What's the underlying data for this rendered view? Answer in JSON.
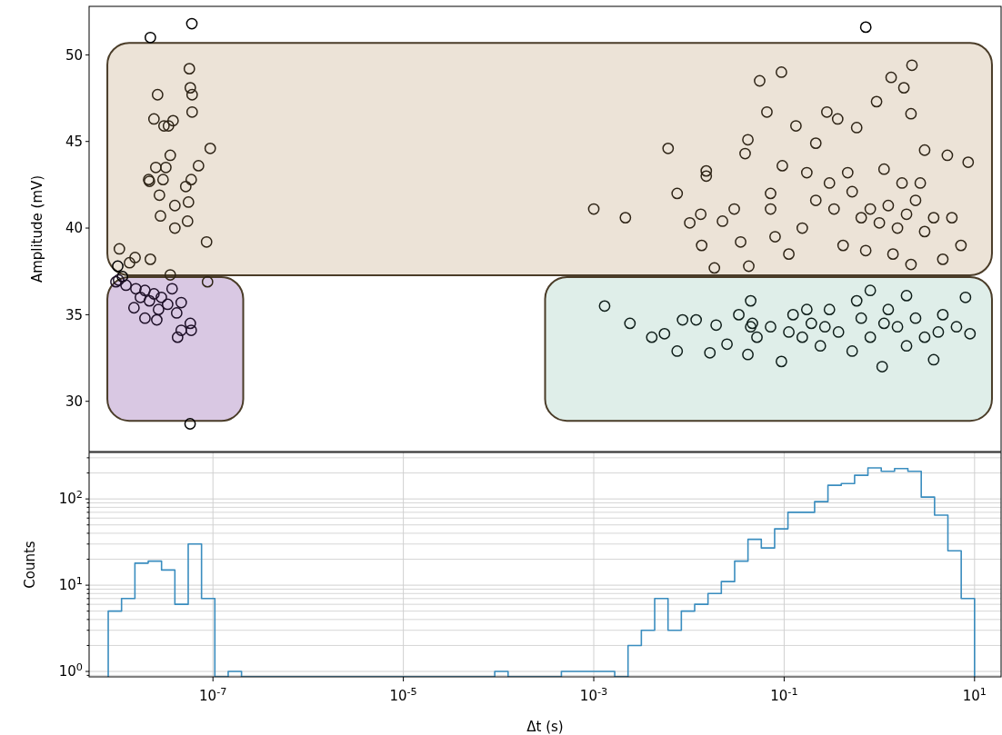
{
  "chart_data": [
    {
      "type": "scatter",
      "ylabel": "Amplitude (mV)",
      "log": "x",
      "xlim": [
        5e-09,
        19
      ],
      "ylim": [
        27.1,
        52.8
      ],
      "yticks": [
        30,
        35,
        40,
        45,
        50
      ],
      "tick_labels": "y",
      "marker": "circle",
      "grid": false,
      "series": [
        {
          "color": "#000000",
          "x": [
            2.2e-08,
            6e-08,
            5.75e-08,
            0.72,
            1e-08,
            1.12e-08
          ],
          "values": [
            51.0,
            51.8,
            28.7,
            51.6,
            37.8,
            37.2
          ]
        },
        {
          "color": "#2e2416",
          "x": [
            5.65e-08,
            5.78e-08,
            6.04e-08,
            2.62e-08,
            6.04e-08,
            2.4e-08,
            3.06e-08,
            3.81e-08,
            3.41e-08,
            9.36e-08,
            3.56e-08,
            2.51e-08,
            3.2e-08,
            7.05e-08,
            2.11e-08,
            2.15e-08,
            2.99e-08,
            5.18e-08,
            5.91e-08,
            2.74e-08,
            3.98e-08,
            5.53e-08,
            2.81e-08,
            5.41e-08,
            3.98e-08,
            8.57e-08,
            1.04e-08,
            1.52e-08,
            2.2e-08,
            1.33e-08,
            3.56e-08,
            8.77e-08,
            0.001,
            0.00215,
            0.00604,
            0.00752,
            0.0102,
            0.0133,
            0.0152,
            0.0152,
            0.0185,
            0.0136,
            0.0225,
            0.0299,
            0.0349,
            0.0389,
            0.0416,
            0.0425,
            0.0553,
            0.0659,
            0.0936,
            0.0957,
            0.072,
            0.072,
            0.0803,
            0.133,
            0.215,
            0.281,
            0.365,
            0.578,
            0.935,
            1.33,
            1.81,
            2.2,
            2.15,
            2.99,
            5.18,
            8.57,
            5.78,
            7.2,
            4.64,
            0.215,
            0.334,
            0.518,
            0.645,
            0.803,
            1.0,
            1.24,
            1.55,
            1.93,
            2.4,
            2.99,
            3.72,
            0.416,
            0.719,
            1.39,
            2.15,
            0.155,
            0.112,
            0.465,
            1.12,
            1.73,
            0.299,
            2.69,
            0.173
          ],
          "values": [
            49.2,
            48.1,
            47.7,
            47.7,
            46.7,
            46.3,
            45.9,
            46.2,
            45.9,
            44.6,
            44.2,
            43.5,
            43.5,
            43.6,
            42.8,
            42.7,
            42.8,
            42.4,
            42.8,
            41.9,
            41.3,
            41.5,
            40.7,
            40.4,
            40.0,
            39.2,
            38.8,
            38.3,
            38.2,
            38.0,
            37.3,
            36.9,
            41.1,
            40.6,
            44.6,
            42.0,
            40.3,
            40.8,
            43.3,
            43.0,
            37.7,
            39.0,
            40.4,
            41.1,
            39.2,
            44.3,
            45.1,
            37.8,
            48.5,
            46.7,
            49.0,
            43.6,
            42.0,
            41.1,
            39.5,
            45.9,
            44.9,
            46.7,
            46.3,
            45.8,
            47.3,
            48.7,
            48.1,
            49.4,
            46.6,
            44.5,
            44.2,
            43.8,
            40.6,
            39.0,
            38.2,
            41.6,
            41.1,
            42.1,
            40.6,
            41.1,
            40.3,
            41.3,
            40.0,
            40.8,
            41.6,
            39.8,
            40.6,
            39.0,
            38.7,
            38.5,
            37.9,
            40.0,
            38.5,
            43.2,
            43.4,
            42.6,
            42.6,
            42.6,
            43.2
          ]
        },
        {
          "color": "#1e1028",
          "x": [
            1.02e-08,
            1.22e-08,
            1.55e-08,
            1.93e-08,
            2.4e-08,
            1.73e-08,
            2.15e-08,
            2.87e-08,
            1.48e-08,
            2.68e-08,
            1.93e-08,
            3.34e-08,
            4.16e-08,
            4.64e-08,
            2.57e-08,
            5.78e-08,
            4.64e-08,
            5.91e-08,
            4.25e-08,
            9.57e-09,
            3.72e-08
          ],
          "values": [
            37.0,
            36.7,
            36.5,
            36.4,
            36.2,
            36.0,
            35.8,
            36.0,
            35.4,
            35.3,
            34.8,
            35.6,
            35.1,
            35.7,
            34.7,
            34.5,
            34.1,
            34.1,
            33.7,
            36.9,
            36.5
          ]
        },
        {
          "color": "#0f1e1a",
          "x": [
            0.0013,
            0.0024,
            0.00407,
            0.00553,
            0.00752,
            0.00857,
            0.0119,
            0.0166,
            0.0193,
            0.0251,
            0.0334,
            0.0445,
            0.0445,
            0.0416,
            0.0518,
            0.072,
            0.0936,
            0.124,
            0.155,
            0.193,
            0.24,
            0.299,
            0.372,
            0.518,
            0.645,
            0.803,
            1.07,
            1.24,
            1.55,
            1.93,
            2.4,
            2.99,
            3.72,
            4.64,
            6.46,
            8.03,
            8.96,
            0.803,
            0.578,
            1.93,
            0.112,
            0.0464,
            0.268,
            1.12,
            4.16,
            0.173
          ],
          "values": [
            35.5,
            34.5,
            33.7,
            33.9,
            32.9,
            34.7,
            34.7,
            32.8,
            34.4,
            33.3,
            35.0,
            35.8,
            34.3,
            32.7,
            33.7,
            34.3,
            32.3,
            35.0,
            33.7,
            34.5,
            33.2,
            35.3,
            34.0,
            32.9,
            34.8,
            33.7,
            32.0,
            35.3,
            34.3,
            33.2,
            34.8,
            33.7,
            32.4,
            35.0,
            34.3,
            36.0,
            33.9,
            36.4,
            35.8,
            36.1,
            34.0,
            34.5,
            34.3,
            34.5,
            34.0,
            35.3
          ]
        }
      ]
    },
    {
      "type": "histogram",
      "xlabel": "Δt (s)",
      "ylabel": "Counts",
      "log": "xy",
      "grid": true,
      "color": "#3a8dbf",
      "xlim": [
        5e-09,
        19
      ],
      "xticks": [
        {
          "value": 1e-07,
          "label": "10$^{-7}$"
        },
        {
          "value": 1e-05,
          "label": "10$^{-5}$"
        },
        {
          "value": 0.001,
          "label": "10$^{-3}$"
        },
        {
          "value": 0.1,
          "label": "10$^{-1}$"
        },
        {
          "value": 10,
          "label": "10$^{1}$"
        }
      ],
      "ylim": [
        0.865,
        346
      ],
      "yticks": [
        {
          "value": 1,
          "label": "10$^{0}$"
        },
        {
          "value": 10,
          "label": "10$^{1}$"
        },
        {
          "value": 100,
          "label": "10$^{2}$"
        }
      ],
      "bins": [
        7.94e-09,
        1.096e-08,
        1.514e-08,
        2.089e-08,
        2.884e-08,
        3.981e-08,
        5.495e-08,
        7.586e-08,
        1.047e-07,
        1.445e-07,
        1.995e-07,
        2.754e-07,
        3.802e-07,
        5.248e-07,
        7.244e-07,
        1e-06,
        1.38e-06,
        1.905e-06,
        2.63e-06,
        3.631e-06,
        5.012e-06,
        6.918e-06,
        9.55e-06,
        1.318e-05,
        1.82e-05,
        2.512e-05,
        3.467e-05,
        4.786e-05,
        6.607e-05,
        9.12e-05,
        0.0001259,
        0.0001738,
        0.0002399,
        0.0003311,
        0.0004571,
        0.000631,
        0.000871,
        0.001202,
        0.00166,
        0.002291,
        0.003162,
        0.004365,
        0.006026,
        0.008318,
        0.01148,
        0.01585,
        0.02188,
        0.0302,
        0.04169,
        0.05754,
        0.07943,
        0.1096,
        0.1514,
        0.2089,
        0.2884,
        0.3981,
        0.5495,
        0.7586,
        1.047,
        1.445,
        1.995,
        2.754,
        3.802,
        5.248,
        7.244,
        10
      ],
      "values": [
        5,
        7,
        18,
        19,
        15,
        6,
        30,
        7,
        null,
        1,
        null,
        null,
        null,
        null,
        null,
        null,
        null,
        null,
        null,
        null,
        null,
        null,
        null,
        null,
        null,
        null,
        null,
        null,
        null,
        1,
        null,
        null,
        null,
        null,
        1,
        1,
        1,
        1,
        null,
        2,
        3,
        7,
        3,
        5,
        6,
        8,
        11,
        19,
        34,
        27,
        45,
        70,
        70,
        93,
        144,
        151,
        188,
        229,
        209,
        225,
        209,
        105,
        65,
        25,
        7
      ]
    }
  ]
}
